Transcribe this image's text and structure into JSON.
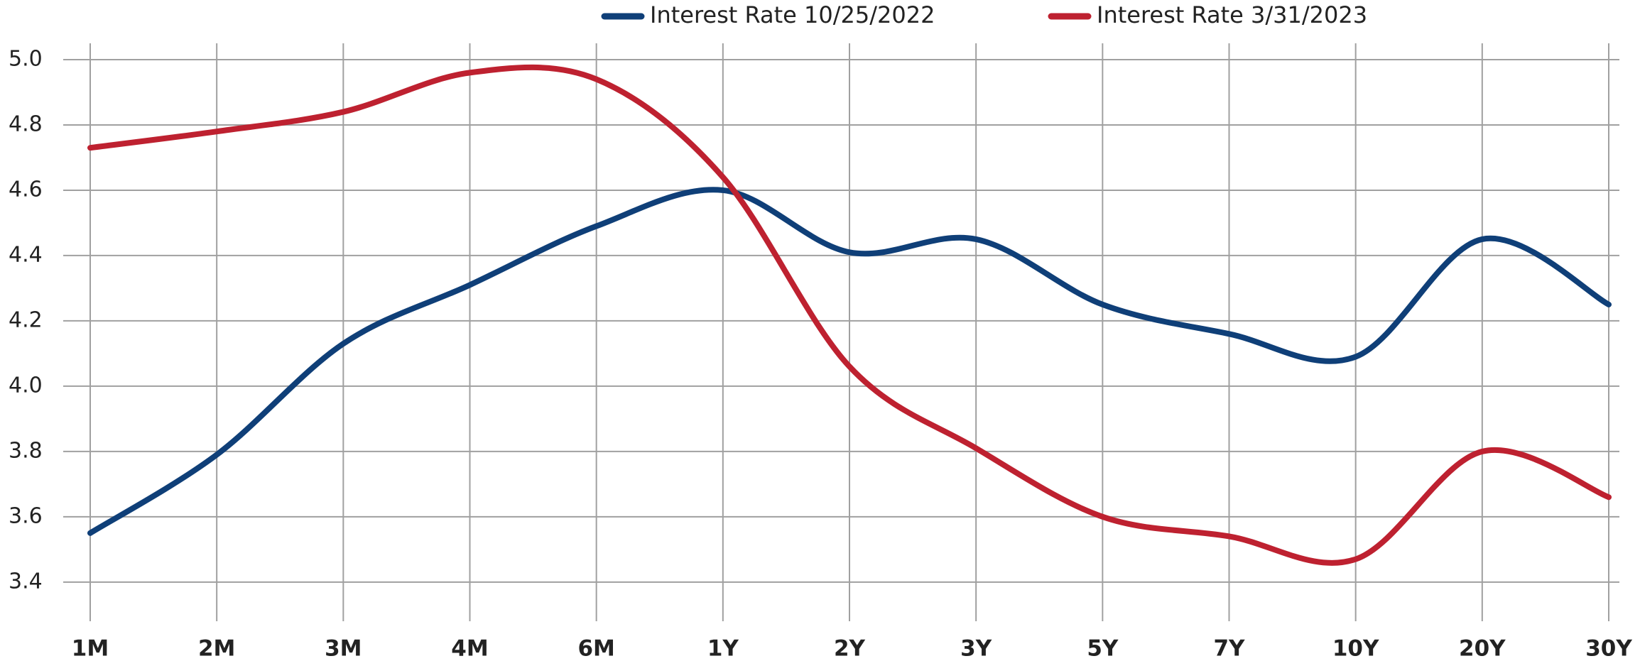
{
  "chart_data": {
    "type": "line",
    "categories": [
      "1M",
      "2M",
      "3M",
      "4M",
      "6M",
      "1Y",
      "2Y",
      "3Y",
      "5Y",
      "7Y",
      "10Y",
      "20Y",
      "30Y"
    ],
    "series": [
      {
        "name": "Interest Rate 10/25/2022",
        "color": "#0f3f78",
        "values": [
          3.55,
          3.79,
          4.13,
          4.31,
          4.49,
          4.6,
          4.41,
          4.45,
          4.25,
          4.16,
          4.09,
          4.45,
          4.25
        ]
      },
      {
        "name": "Interest Rate 3/31/2023",
        "color": "#be2130",
        "values": [
          4.73,
          4.78,
          4.84,
          4.96,
          4.94,
          4.64,
          4.06,
          3.81,
          3.6,
          3.54,
          3.47,
          3.8,
          3.66
        ]
      }
    ],
    "ylim": [
      3.28,
      5.05
    ],
    "yticks": [
      3.4,
      3.6,
      3.8,
      {
        "value": 4.0,
        "label": "4.0"
      },
      4.2,
      4.4,
      4.6,
      4.8,
      {
        "value": 5.0,
        "label": "5.0"
      }
    ],
    "grid": true,
    "legend": "top",
    "smooth": true
  }
}
